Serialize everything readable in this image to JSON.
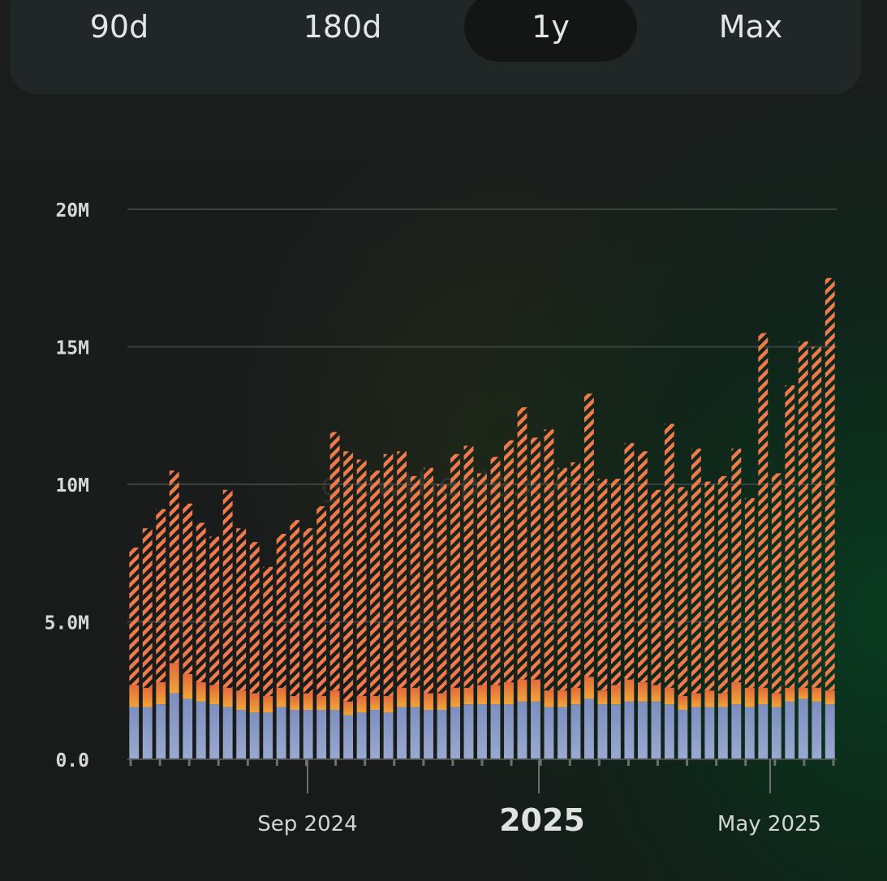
{
  "range_selector": {
    "options": [
      "90d",
      "180d",
      "1y",
      "Max"
    ],
    "selected": "1y"
  },
  "watermark": {
    "text": "growthepie.xyz"
  },
  "chart_data": {
    "type": "bar",
    "stacked": true,
    "ylim": [
      0,
      20000000
    ],
    "yticks": [
      {
        "value": 0,
        "label": "0.0"
      },
      {
        "value": 5000000,
        "label": "5.0M"
      },
      {
        "value": 10000000,
        "label": "10M"
      },
      {
        "value": 15000000,
        "label": "15M"
      },
      {
        "value": 20000000,
        "label": "20M"
      }
    ],
    "xlabels": [
      {
        "index": 9,
        "label": "Sep 2024",
        "major": false
      },
      {
        "index": 22,
        "label": "2025",
        "major": true
      },
      {
        "index": 35,
        "label": "May 2025",
        "major": false
      }
    ],
    "totals": [
      7.7,
      8.4,
      9.1,
      10.5,
      9.3,
      8.6,
      8.1,
      9.8,
      8.4,
      7.9,
      7.0,
      8.2,
      8.7,
      8.4,
      9.2,
      11.9,
      11.2,
      10.9,
      10.5,
      11.1,
      11.2,
      10.3,
      10.6,
      10.0,
      11.1,
      11.4,
      10.4,
      11.0,
      11.6,
      12.8,
      11.7,
      12.0,
      10.6,
      10.8,
      13.3,
      10.2,
      10.2,
      11.5,
      11.2,
      9.8,
      12.2,
      9.9,
      11.3,
      10.1,
      10.3,
      11.3,
      9.5,
      15.5,
      10.4,
      13.6,
      15.2,
      15.0,
      17.5
    ],
    "series": [
      {
        "name": "blue",
        "color": "#8a9cc9",
        "values": [
          1.9,
          1.9,
          2.0,
          2.4,
          2.2,
          2.1,
          2.0,
          1.9,
          1.8,
          1.7,
          1.7,
          1.9,
          1.8,
          1.8,
          1.8,
          1.8,
          1.6,
          1.7,
          1.8,
          1.7,
          1.9,
          1.9,
          1.8,
          1.8,
          1.9,
          2.0,
          2.0,
          2.0,
          2.0,
          2.1,
          2.1,
          1.9,
          1.9,
          2.0,
          2.2,
          2.0,
          2.0,
          2.1,
          2.1,
          2.1,
          2.0,
          1.8,
          1.9,
          1.9,
          1.9,
          2.0,
          1.9,
          2.0,
          1.9,
          2.1,
          2.2,
          2.1,
          2.0
        ]
      },
      {
        "name": "orange",
        "color": "#e8883a",
        "values": [
          0.8,
          0.7,
          0.8,
          1.1,
          0.9,
          0.7,
          0.7,
          0.7,
          0.7,
          0.7,
          0.6,
          0.7,
          0.5,
          0.6,
          0.5,
          0.7,
          0.5,
          0.6,
          0.5,
          0.6,
          0.7,
          0.7,
          0.6,
          0.6,
          0.7,
          0.6,
          0.7,
          0.7,
          0.8,
          0.8,
          0.8,
          0.6,
          0.6,
          0.6,
          0.8,
          0.5,
          0.7,
          0.8,
          0.7,
          0.6,
          0.6,
          0.5,
          0.5,
          0.6,
          0.5,
          0.8,
          0.7,
          0.6,
          0.5,
          0.5,
          0.4,
          0.5,
          0.5
        ]
      },
      {
        "name": "striped",
        "color": "#f07a4a",
        "values": [
          5.0,
          5.8,
          6.3,
          7.0,
          6.2,
          5.8,
          5.4,
          7.2,
          5.9,
          5.5,
          4.7,
          5.6,
          6.4,
          6.0,
          6.9,
          9.4,
          9.1,
          8.6,
          8.2,
          8.8,
          8.6,
          7.7,
          8.2,
          7.6,
          8.5,
          8.8,
          7.7,
          8.3,
          8.8,
          9.9,
          8.8,
          9.5,
          8.1,
          8.2,
          10.3,
          7.7,
          7.5,
          8.6,
          8.4,
          7.1,
          9.6,
          7.6,
          8.9,
          7.6,
          7.9,
          8.5,
          6.9,
          12.9,
          8.0,
          11.0,
          12.6,
          12.4,
          15.0
        ]
      }
    ]
  }
}
